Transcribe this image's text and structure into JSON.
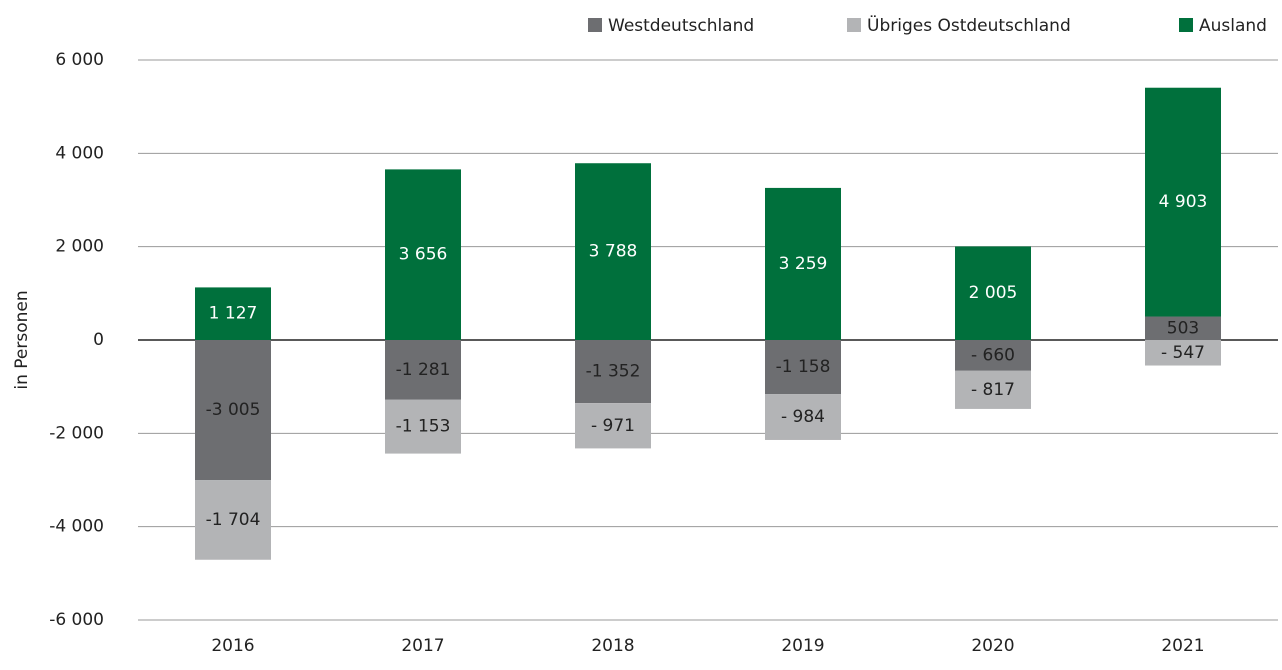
{
  "chart_data": {
    "type": "stacked-bar",
    "categories": [
      "2016",
      "2017",
      "2018",
      "2019",
      "2020",
      "2021"
    ],
    "y_label": "in Personen",
    "series": [
      {
        "name": "Westdeutschland",
        "color": "#6d6e71",
        "values": [
          -3005,
          -1281,
          -1352,
          -1158,
          -660,
          503
        ],
        "value_labels": [
          "-3 005",
          "-1 281",
          "-1 352",
          "-1 158",
          "- 660",
          "503"
        ]
      },
      {
        "name": "Übriges Ostdeutschland",
        "color": "#b3b4b6",
        "values": [
          -1704,
          -1153,
          -971,
          -984,
          -817,
          -547
        ],
        "value_labels": [
          "-1 704",
          "-1 153",
          "- 971",
          "- 984",
          "- 817",
          "- 547"
        ]
      },
      {
        "name": "Ausland",
        "color": "#00703c",
        "values": [
          1127,
          3656,
          3788,
          3259,
          2005,
          4903
        ],
        "value_labels": [
          "1 127",
          "3 656",
          "3 788",
          "3 259",
          "2 005",
          "4 903"
        ]
      }
    ],
    "ylim": [
      -6000,
      6000
    ],
    "yticks": [
      {
        "value": -6000,
        "label": "-6 000"
      },
      {
        "value": -4000,
        "label": "-4 000"
      },
      {
        "value": -2000,
        "label": "-2 000"
      },
      0,
      {
        "value": 2000,
        "label": "2 000"
      },
      {
        "value": 4000,
        "label": "4 000"
      },
      {
        "value": 6000,
        "label": "6 000"
      }
    ],
    "grid": true
  }
}
